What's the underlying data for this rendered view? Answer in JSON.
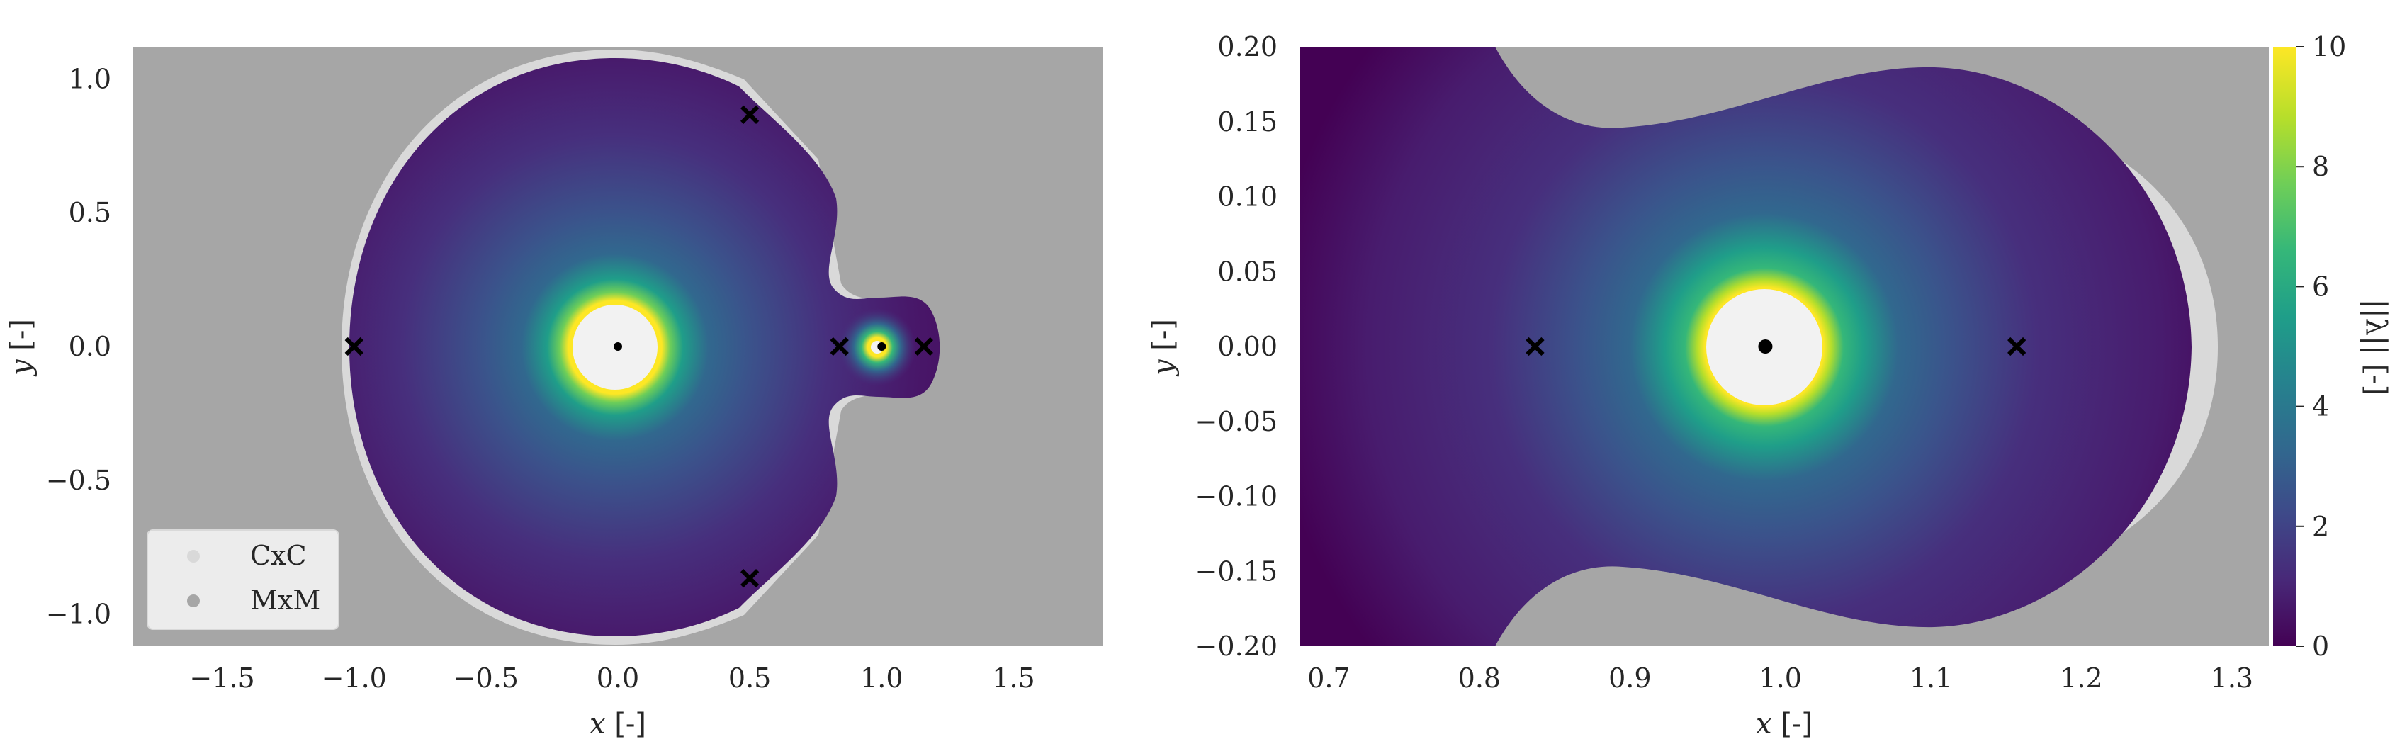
{
  "chart_data": [
    {
      "type": "heatmap",
      "xlim": [
        -1.84,
        1.84
      ],
      "ylim": [
        -1.12,
        1.12
      ],
      "xticks": [
        {
          "value": -1.5,
          "label": "−1.5"
        },
        {
          "value": -1.0,
          "label": "−1.0"
        },
        {
          "value": -0.5,
          "label": "−0.5"
        },
        {
          "value": 0.0,
          "label": "0.0"
        },
        {
          "value": 0.5,
          "label": "0.5"
        },
        {
          "value": 1.0,
          "label": "1.0"
        },
        {
          "value": 1.5,
          "label": "1.5"
        }
      ],
      "yticks": [
        {
          "value": 1.0,
          "label": "1.0"
        },
        {
          "value": 0.5,
          "label": "0.5"
        },
        {
          "value": 0.0,
          "label": "0.0"
        },
        {
          "value": -0.5,
          "label": "−0.5"
        },
        {
          "value": -1.0,
          "label": "−1.0"
        }
      ],
      "xlabel": "x [-]",
      "ylabel": "y [-]",
      "grid": false,
      "primaries": [
        {
          "x": 0.0,
          "y": 0.0
        },
        {
          "x": 1.0,
          "y": 0.0
        }
      ],
      "lagrange_points": [
        {
          "x": -1.0,
          "y": 0.0
        },
        {
          "x": 0.84,
          "y": 0.0
        },
        {
          "x": 1.16,
          "y": 0.0
        },
        {
          "x": 0.5,
          "y": 0.866
        },
        {
          "x": 0.5,
          "y": -0.866
        }
      ],
      "legend": {
        "placement": "lower-left",
        "entries": [
          {
            "label": "CxC",
            "color": "#d9d9d9"
          },
          {
            "label": "MxM",
            "color": "#a6a6a6"
          }
        ]
      }
    },
    {
      "type": "heatmap",
      "xlim": [
        0.68,
        1.325
      ],
      "ylim": [
        -0.2,
        0.2
      ],
      "xticks": [
        {
          "value": 0.7,
          "label": "0.7"
        },
        {
          "value": 0.8,
          "label": "0.8"
        },
        {
          "value": 0.9,
          "label": "0.9"
        },
        {
          "value": 1.0,
          "label": "1.0"
        },
        {
          "value": 1.1,
          "label": "1.1"
        },
        {
          "value": 1.2,
          "label": "1.2"
        },
        {
          "value": 1.3,
          "label": "1.3"
        }
      ],
      "yticks": [
        {
          "value": 0.2,
          "label": "0.20"
        },
        {
          "value": 0.15,
          "label": "0.15"
        },
        {
          "value": 0.1,
          "label": "0.10"
        },
        {
          "value": 0.05,
          "label": "0.05"
        },
        {
          "value": 0.0,
          "label": "0.00"
        },
        {
          "value": -0.05,
          "label": "−0.05"
        },
        {
          "value": -0.1,
          "label": "−0.10"
        },
        {
          "value": -0.15,
          "label": "−0.15"
        },
        {
          "value": -0.2,
          "label": "−0.20"
        }
      ],
      "xlabel": "x [-]",
      "ylabel": "y [-]",
      "grid": false,
      "primaries": [
        {
          "x": 0.99,
          "y": 0.0
        }
      ],
      "lagrange_points": [
        {
          "x": 0.837,
          "y": 0.0
        },
        {
          "x": 1.157,
          "y": 0.0
        }
      ],
      "colorbar": {
        "label": "||λ|| [-]",
        "min": 0,
        "max": 10,
        "ticks": [
          {
            "value": 0,
            "label": "0"
          },
          {
            "value": 2,
            "label": "2"
          },
          {
            "value": 4,
            "label": "4"
          },
          {
            "value": 6,
            "label": "6"
          },
          {
            "value": 8,
            "label": "8"
          },
          {
            "value": 10,
            "label": "10"
          }
        ],
        "colormap": "viridis"
      }
    }
  ],
  "colors": {
    "background_gray": "#a6a6a6",
    "cxc_gray": "#d9d9d9",
    "hole": "#f2f2f2",
    "marker": "#000000",
    "viridis": [
      "#440154",
      "#482878",
      "#3e4989",
      "#31688e",
      "#26828e",
      "#1f9e89",
      "#35b779",
      "#6ece58",
      "#b5de2b",
      "#fde725"
    ]
  }
}
